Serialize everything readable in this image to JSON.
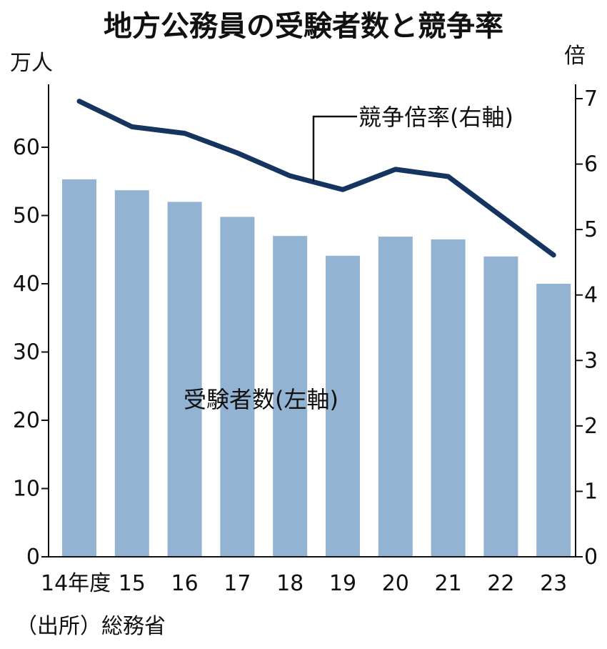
{
  "chart_data": {
    "type": "bar",
    "title": "地方公務員の受験者数と競争率",
    "categories": [
      "14年度",
      "15",
      "16",
      "17",
      "18",
      "19",
      "20",
      "21",
      "22",
      "23"
    ],
    "series": [
      {
        "name": "受験者数(左軸)",
        "type": "bar",
        "axis": "left",
        "values": [
          55.3,
          53.7,
          52.0,
          49.8,
          47.0,
          44.1,
          46.9,
          46.5,
          44.0,
          40.0
        ]
      },
      {
        "name": "競争倍率(右軸)",
        "type": "line",
        "axis": "right",
        "values": [
          6.96,
          6.57,
          6.47,
          6.17,
          5.82,
          5.61,
          5.92,
          5.81,
          5.21,
          4.61
        ]
      }
    ],
    "left_axis": {
      "unit": "万人",
      "ticks": [
        "0",
        "10",
        "20",
        "30",
        "40",
        "50",
        "60"
      ],
      "ylim": [
        0,
        70
      ]
    },
    "right_axis": {
      "unit": "倍",
      "ticks": [
        "0",
        "1",
        "2",
        "3",
        "4",
        "5",
        "6",
        "7"
      ],
      "ylim": [
        0,
        7.3
      ]
    },
    "colors": {
      "bar": "#93b3d2",
      "line": "#15345f",
      "axis": "#111111"
    },
    "source": "（出所）総務省",
    "grid": false,
    "legend": "none"
  }
}
